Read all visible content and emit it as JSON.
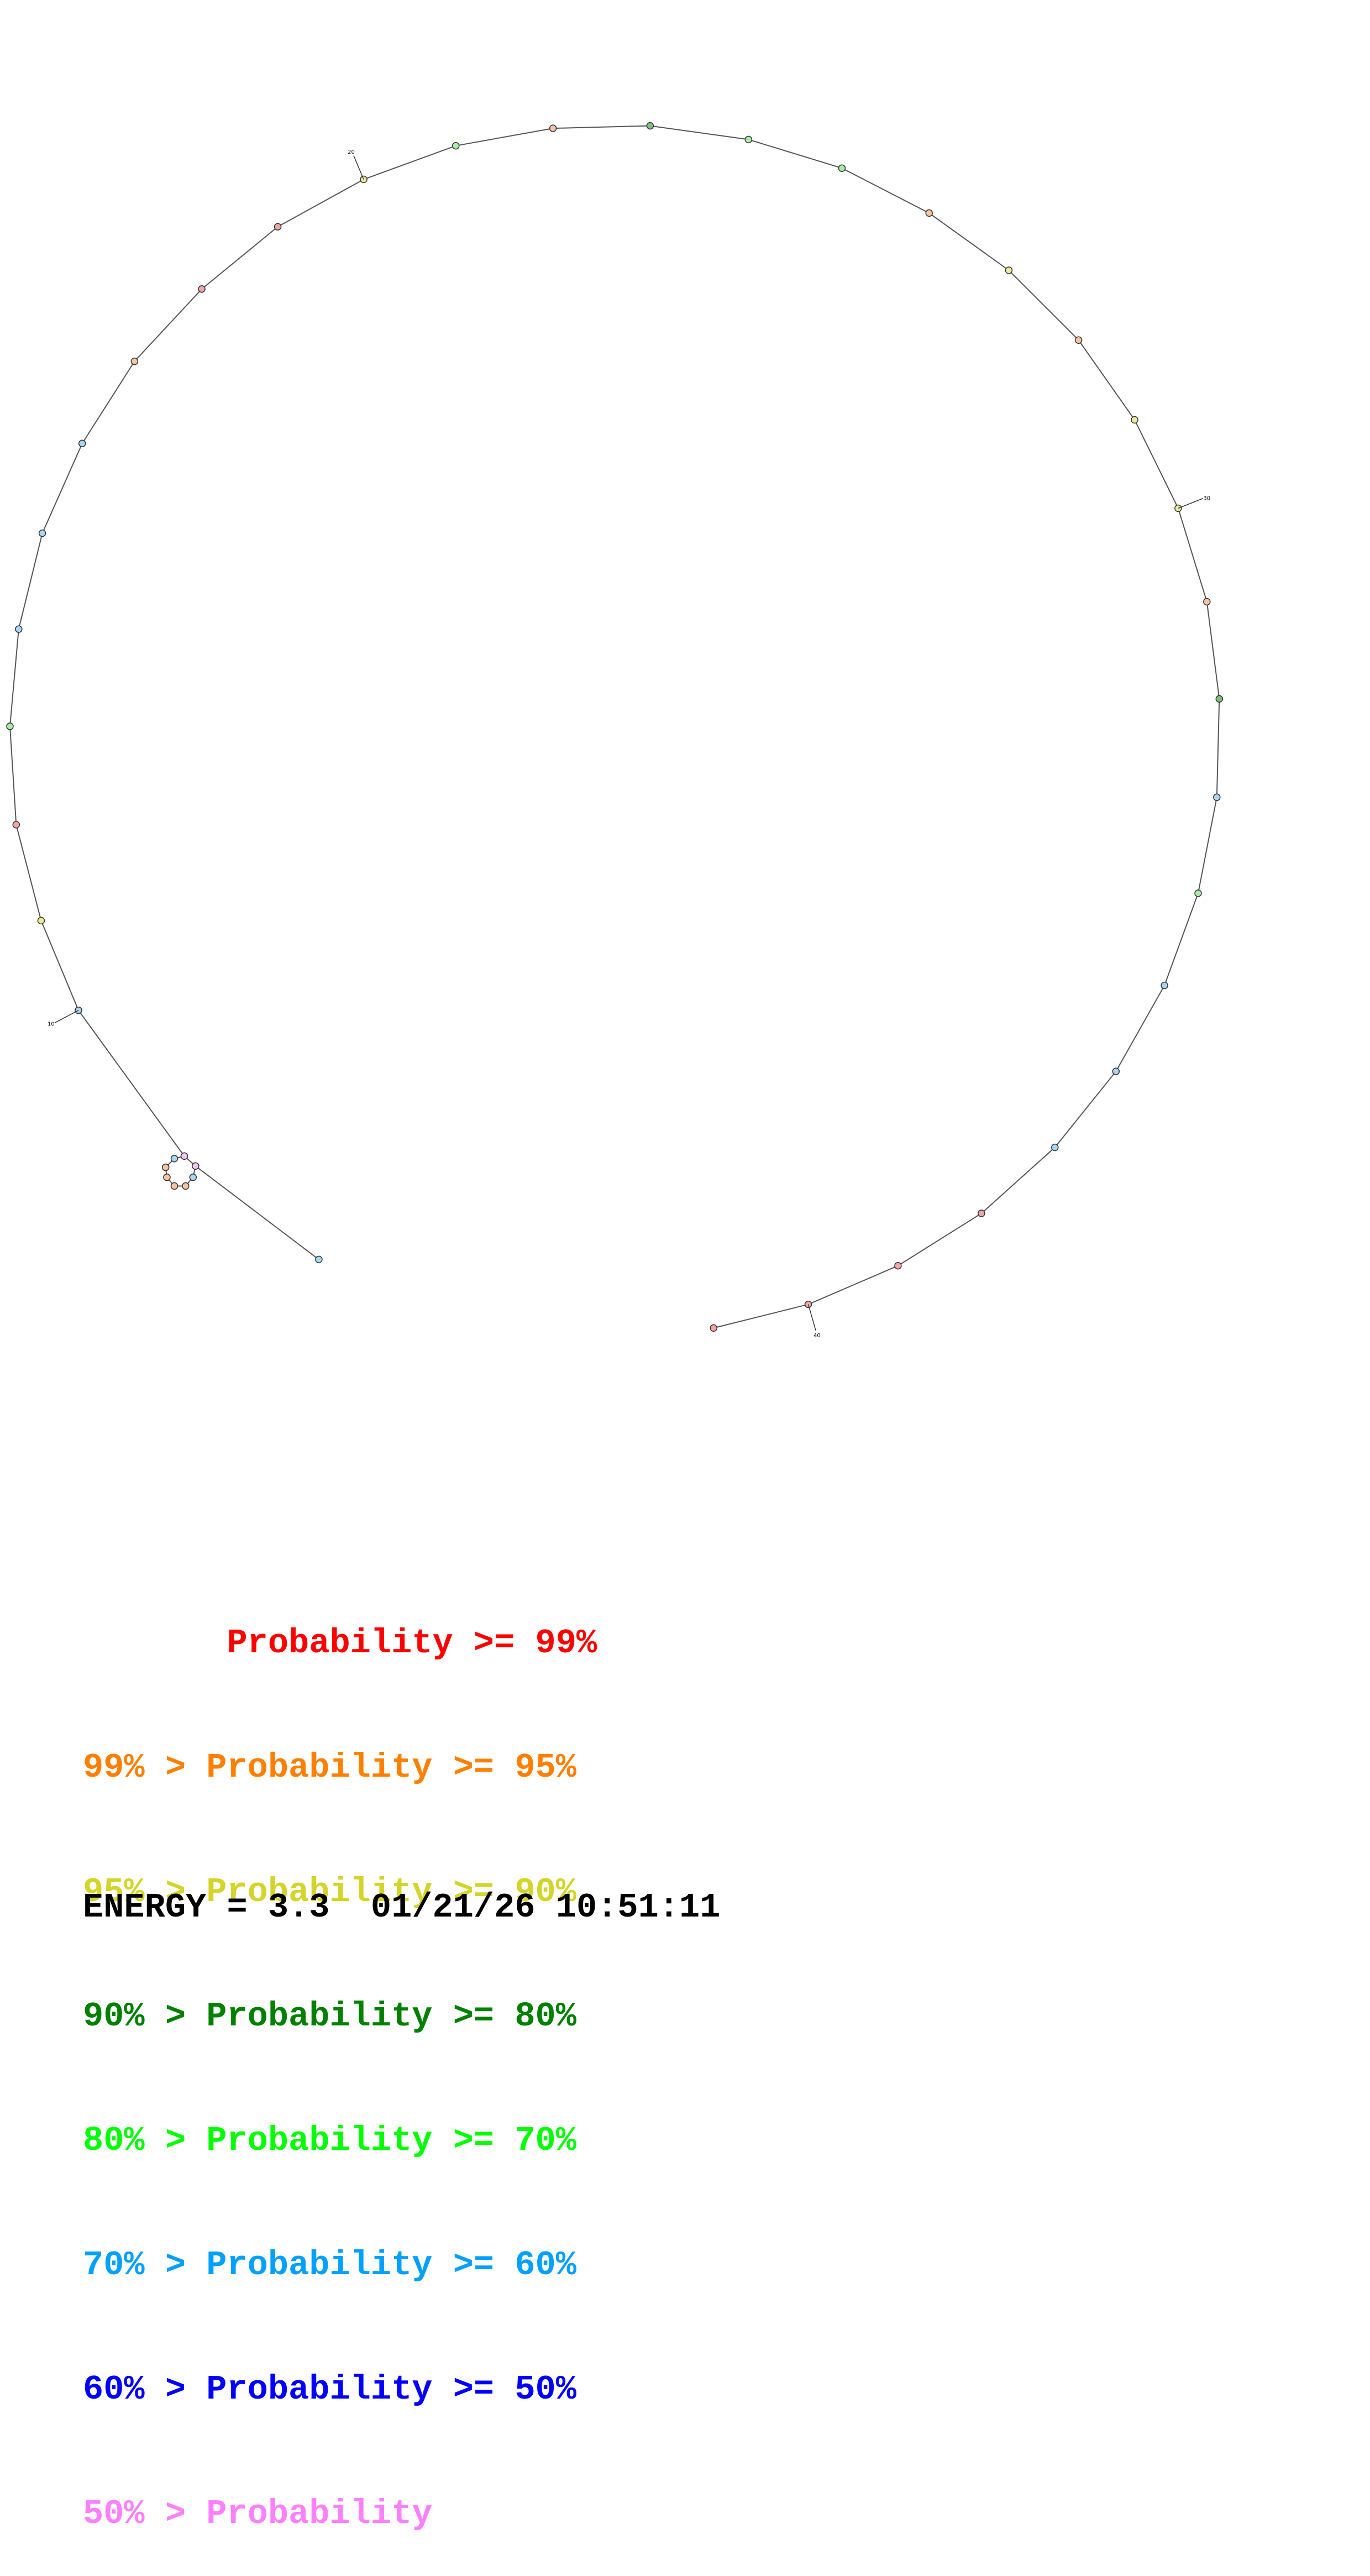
{
  "legend": [
    {
      "text": "       Probability >= 99%",
      "color": "#ff0000"
    },
    {
      "text": "99% > Probability >= 95%",
      "color": "#ff8000"
    },
    {
      "text": "95% > Probability >= 90%",
      "color": "#d4d42a"
    },
    {
      "text": "90% > Probability >= 80%",
      "color": "#008000"
    },
    {
      "text": "80% > Probability >= 70%",
      "color": "#00ff00"
    },
    {
      "text": "70% > Probability >= 60%",
      "color": "#00a0ff"
    },
    {
      "text": "60% > Probability >= 50%",
      "color": "#0000ff"
    },
    {
      "text": "50% > Probability",
      "color": "#ff80ff"
    }
  ],
  "energy": {
    "label": "ENERGY = 3.3",
    "timestamp": "01/21/26 10:51:11"
  },
  "structure": {
    "position_labels": [
      "10",
      "20",
      "30",
      "40"
    ],
    "nucleotide_colors": {
      "red": "#f4a6a6",
      "orange": "#f7c59f",
      "yellow": "#ecec9a",
      "darkgreen": "#80c080",
      "green": "#a8eca8",
      "blue": "#a8d6f4",
      "pink": "#f4c8f4"
    }
  }
}
